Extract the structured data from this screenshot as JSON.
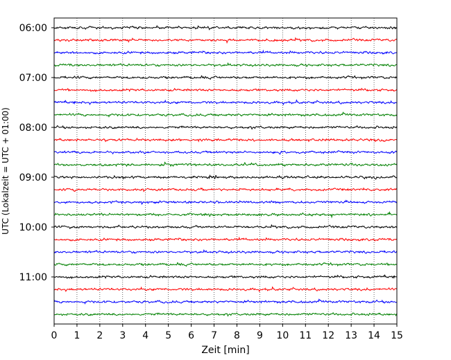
{
  "chart_data": {
    "type": "line",
    "chart_kind": "dayplot-seismogram",
    "xlabel": "Zeit  [min]",
    "ylabel": "UTC (Lokalzeit = UTC + 01:00)",
    "xlim": [
      0,
      15
    ],
    "x_ticks": [
      "0",
      "1",
      "2",
      "3",
      "4",
      "5",
      "6",
      "7",
      "8",
      "9",
      "10",
      "11",
      "12",
      "13",
      "14",
      "15"
    ],
    "x_grid": true,
    "y_ticks": [
      "06:00",
      "07:00",
      "08:00",
      "09:00",
      "10:00",
      "11:00"
    ],
    "trace_interval_minutes": 15,
    "first_trace_start": "06:00",
    "trace_count": 24,
    "trace_colors": [
      "#000000",
      "#ff0000",
      "#0000ff",
      "#008000"
    ],
    "trace_starts": [
      "06:00",
      "06:15",
      "06:30",
      "06:45",
      "07:00",
      "07:15",
      "07:30",
      "07:45",
      "08:00",
      "08:15",
      "08:30",
      "08:45",
      "09:00",
      "09:15",
      "09:30",
      "09:45",
      "10:00",
      "10:15",
      "10:30",
      "10:45",
      "11:00",
      "11:15",
      "11:30",
      "11:45"
    ]
  }
}
